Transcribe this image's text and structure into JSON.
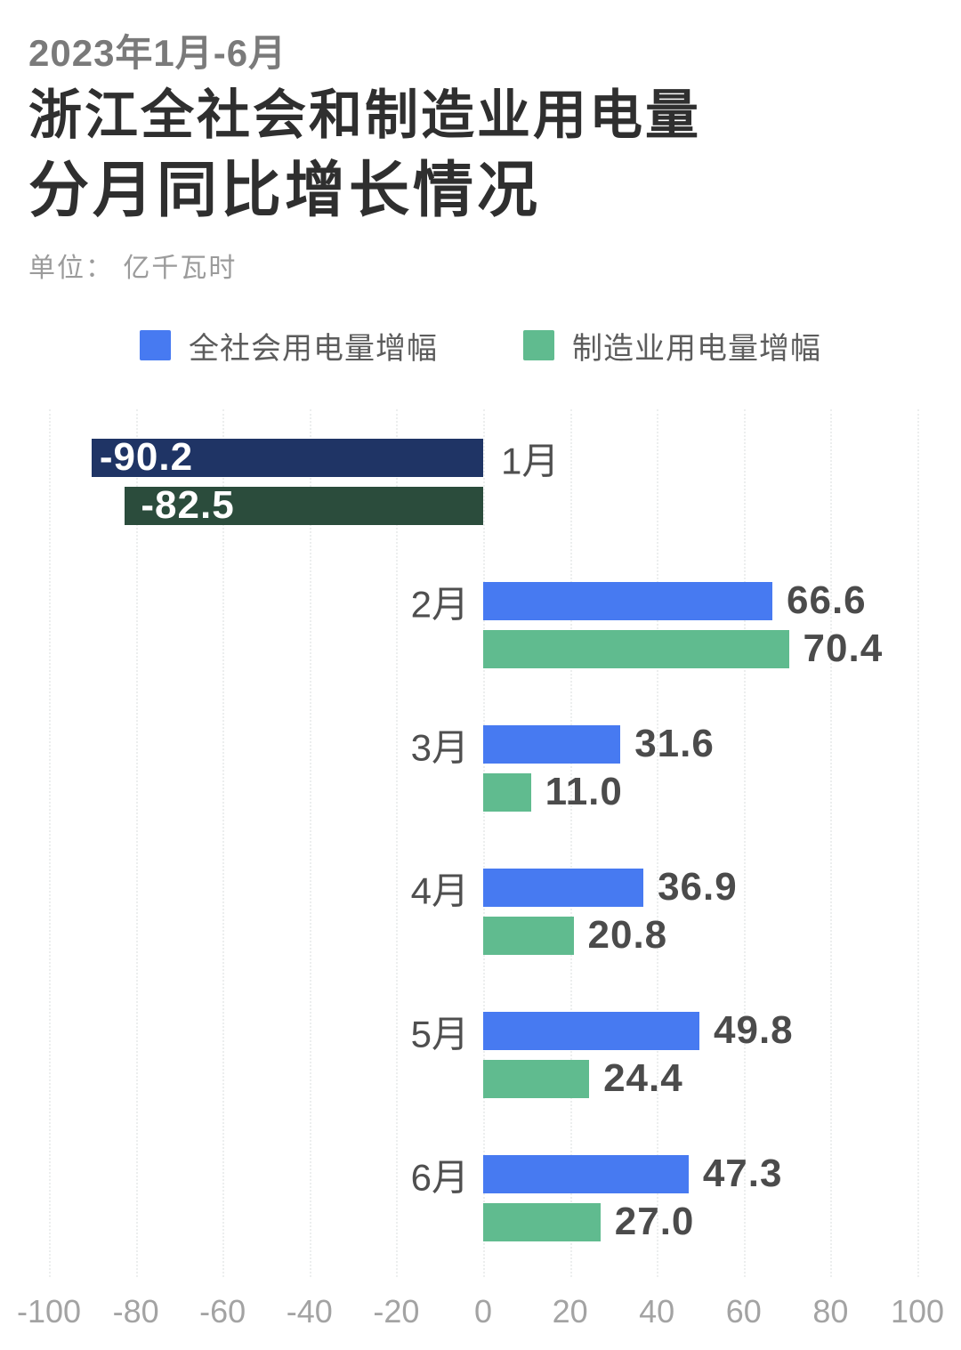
{
  "header": {
    "period": "2023年1月-6月",
    "title_line1": "浙江全社会和制造业用电量",
    "title_line2": "分月同比增长情况",
    "unit": "单位： 亿千瓦时"
  },
  "legend": {
    "items": [
      {
        "label": "全社会用电量增幅",
        "color": "#477af1"
      },
      {
        "label": "制造业用电量增幅",
        "color": "#60bb8f"
      }
    ]
  },
  "chart_data": {
    "type": "bar",
    "orientation": "horizontal",
    "title": "2023年1月-6月 浙江全社会和制造业用电量分月同比增长情况",
    "unit_label": "单位： 亿千瓦时",
    "categories": [
      "1月",
      "2月",
      "3月",
      "4月",
      "5月",
      "6月"
    ],
    "series": [
      {
        "key": "society",
        "name": "全社会用电量增幅",
        "color": "#477af1",
        "negative_color": "#1f3465",
        "values": [
          -90.2,
          66.6,
          31.6,
          36.9,
          49.8,
          47.3
        ]
      },
      {
        "key": "manufacturing",
        "name": "制造业用电量增幅",
        "color": "#60bb8f",
        "negative_color": "#2b4c3c",
        "values": [
          -82.5,
          70.4,
          11.0,
          20.8,
          24.4,
          27.0
        ]
      }
    ],
    "xlim": [
      -100,
      100
    ],
    "x_ticks": [
      -100,
      -80,
      -60,
      -40,
      -20,
      0,
      20,
      40,
      60,
      80,
      100
    ],
    "grid": true,
    "legend_position": "top",
    "value_labels": true
  }
}
